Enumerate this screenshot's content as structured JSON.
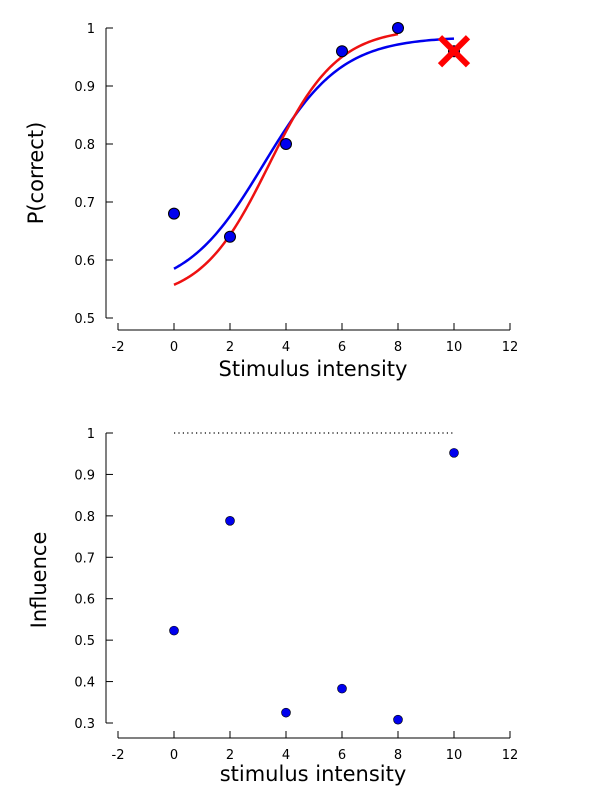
{
  "chart_data": [
    {
      "type": "scatter",
      "title": "",
      "xlabel": "Stimulus intensity",
      "ylabel": "P(correct)",
      "xlim": [
        -2,
        12
      ],
      "ylim": [
        0.5,
        1.0
      ],
      "xticks": [
        "-2",
        "0",
        "2",
        "4",
        "6",
        "8",
        "10",
        "12"
      ],
      "yticks": [
        "0.5",
        "0.6",
        "0.7",
        "0.8",
        "0.9",
        "1"
      ],
      "grid": false,
      "points": [
        {
          "x": 0,
          "y": 0.68
        },
        {
          "x": 2,
          "y": 0.64
        },
        {
          "x": 4,
          "y": 0.8
        },
        {
          "x": 6,
          "y": 0.96
        },
        {
          "x": 8,
          "y": 1.0
        }
      ],
      "excluded_point": {
        "x": 10,
        "y": 0.96,
        "marker": "x",
        "color": "#ff0000"
      },
      "curves": [
        {
          "color": "#0000ee",
          "x0": 0,
          "x1": 10,
          "low": 0.545,
          "high": 0.985,
          "mid": 3.2,
          "slope": 0.72
        },
        {
          "color": "#ee1111",
          "x0": 0,
          "x1": 8,
          "low": 0.53,
          "high": 1.0,
          "mid": 3.4,
          "slope": 0.82
        }
      ],
      "colors": {
        "points": "#0000ee",
        "edge": "#000000"
      }
    },
    {
      "type": "scatter",
      "title": "",
      "xlabel": "stimulus intensity",
      "ylabel": "Influence",
      "xlim": [
        -2,
        12
      ],
      "ylim": [
        0.3,
        1.0
      ],
      "xticks": [
        "-2",
        "0",
        "2",
        "4",
        "6",
        "8",
        "10",
        "12"
      ],
      "yticks": [
        "0.3",
        "0.4",
        "0.5",
        "0.6",
        "0.7",
        "0.8",
        "0.9",
        "1"
      ],
      "grid": false,
      "points": [
        {
          "x": 0,
          "y": 0.523
        },
        {
          "x": 2,
          "y": 0.788
        },
        {
          "x": 4,
          "y": 0.325
        },
        {
          "x": 6,
          "y": 0.383
        },
        {
          "x": 8,
          "y": 0.308
        },
        {
          "x": 10,
          "y": 0.952
        }
      ],
      "reference_line": {
        "y": 1.0,
        "x0": 0,
        "x1": 10,
        "style": "dotted"
      },
      "colors": {
        "points": "#0000ee"
      }
    }
  ]
}
